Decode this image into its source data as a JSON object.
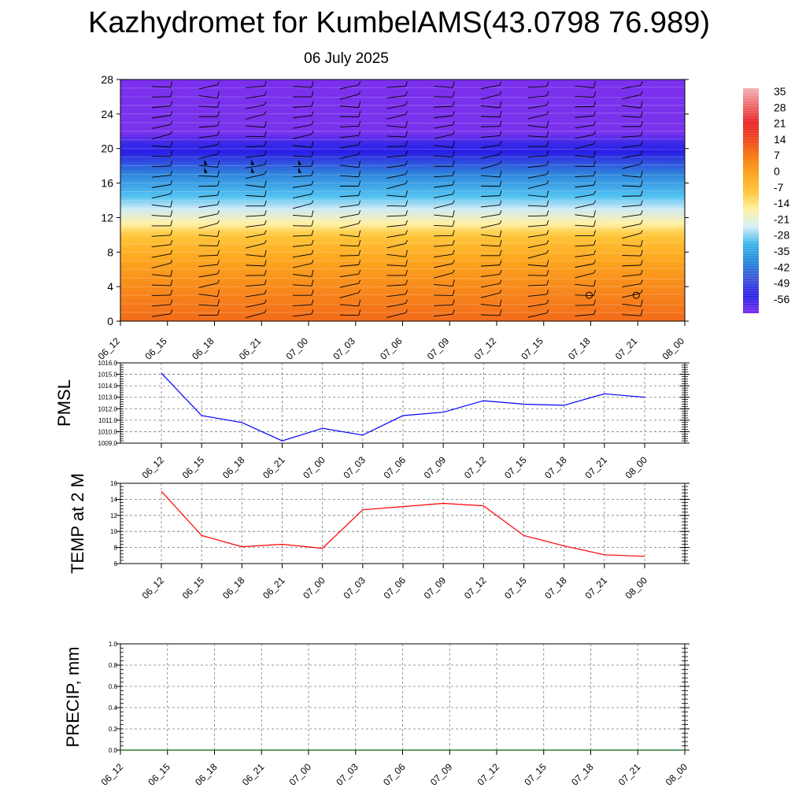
{
  "header": {
    "title": "Kazhydromet for KumbelAMS(43.0798 76.989)",
    "subtitle": "06 July 2025"
  },
  "chart_data": [
    {
      "type": "heatmap",
      "name": "temperature-cross-section",
      "x": [
        "06_12",
        "06_15",
        "06_18",
        "06_21",
        "07_00",
        "07_03",
        "07_06",
        "07_09",
        "07_12",
        "07_15",
        "07_18",
        "07_21",
        "08_00"
      ],
      "y_ticks": [
        "0",
        "4",
        "8",
        "12",
        "16",
        "20",
        "24",
        "28"
      ],
      "ylim": [
        0,
        28
      ],
      "colorbar": {
        "labels": [
          "35",
          "28",
          "21",
          "14",
          "7",
          "0",
          "-7",
          "-14",
          "-21",
          "-28",
          "-35",
          "-42",
          "-49",
          "-56"
        ],
        "colors": [
          "#f3b3b3",
          "#ef6b6b",
          "#e8262b",
          "#ee4a1c",
          "#f77c12",
          "#fca51c",
          "#ffc53b",
          "#fff3a0",
          "#d7eef8",
          "#3fb6ee",
          "#2a8ad8",
          "#3d57d8",
          "#2f23e6",
          "#7a32ec"
        ]
      },
      "bands": [
        {
          "level": 0,
          "color": "#f26b1a"
        },
        {
          "level": 3,
          "color": "#f7831c"
        },
        {
          "level": 7,
          "color": "#fca51e"
        },
        {
          "level": 10,
          "color": "#ffc73a"
        },
        {
          "level": 11.3,
          "color": "#fff1a6"
        },
        {
          "level": 13,
          "color": "#cfeaf6"
        },
        {
          "level": 14.5,
          "color": "#50c1f0"
        },
        {
          "level": 17,
          "color": "#2f86dc"
        },
        {
          "level": 18.8,
          "color": "#2f3fe0"
        },
        {
          "level": 19.6,
          "color": "#2a1de6"
        },
        {
          "level": 20.6,
          "color": "#3a2ae8"
        },
        {
          "level": 21.8,
          "color": "#7a32ec"
        },
        {
          "level": 28,
          "color": "#7b30ed"
        }
      ],
      "wind_markers": {
        "flags_at": [
          "06_18",
          "06_21",
          "07_00"
        ],
        "flag_level": 18,
        "calm_at": [
          "07_18",
          "07_21"
        ],
        "calm_level": 3
      }
    },
    {
      "type": "line",
      "name": "pmsl",
      "ylabel": "PMSL",
      "x": [
        "06_12",
        "06_15",
        "06_18",
        "06_21",
        "07_00",
        "07_03",
        "07_06",
        "07_09",
        "07_12",
        "07_15",
        "07_18",
        "07_21",
        "08_00"
      ],
      "yticks": [
        "1009.0",
        "1010.0",
        "1011.0",
        "1012.0",
        "1013.0",
        "1014.0",
        "1015.0",
        "1016.0"
      ],
      "ylim": [
        1009,
        1016
      ],
      "color": "#0000ff",
      "values": [
        1015.1,
        1011.4,
        1010.8,
        1009.2,
        1010.3,
        1009.7,
        1011.4,
        1011.7,
        1012.7,
        1012.4,
        1012.3,
        1013.3,
        1013.0
      ]
    },
    {
      "type": "line",
      "name": "temp2m",
      "ylabel": "TEMP at 2 M",
      "x": [
        "06_12",
        "06_15",
        "06_18",
        "06_21",
        "07_00",
        "07_03",
        "07_06",
        "07_09",
        "07_12",
        "07_15",
        "07_18",
        "07_21",
        "08_00"
      ],
      "yticks": [
        "6",
        "8",
        "10",
        "12",
        "14",
        "16"
      ],
      "ylim": [
        6,
        16
      ],
      "color": "#ff0000",
      "values": [
        15.0,
        9.5,
        8.1,
        8.4,
        7.9,
        12.7,
        13.1,
        13.5,
        13.2,
        9.5,
        8.2,
        7.1,
        6.9
      ]
    },
    {
      "type": "line",
      "name": "precip",
      "ylabel": "PRECIP, mm",
      "x": [
        "06_12",
        "06_15",
        "06_18",
        "06_21",
        "07_00",
        "07_03",
        "07_06",
        "07_09",
        "07_12",
        "07_15",
        "07_18",
        "07_21",
        "08_00"
      ],
      "yticks": [
        "0.0",
        "0.2",
        "0.4",
        "0.6",
        "0.8",
        "1.0"
      ],
      "ylim": [
        0,
        1
      ],
      "color": "#006400",
      "values": [
        0,
        0,
        0,
        0,
        0,
        0,
        0,
        0,
        0,
        0,
        0,
        0,
        0
      ]
    }
  ]
}
